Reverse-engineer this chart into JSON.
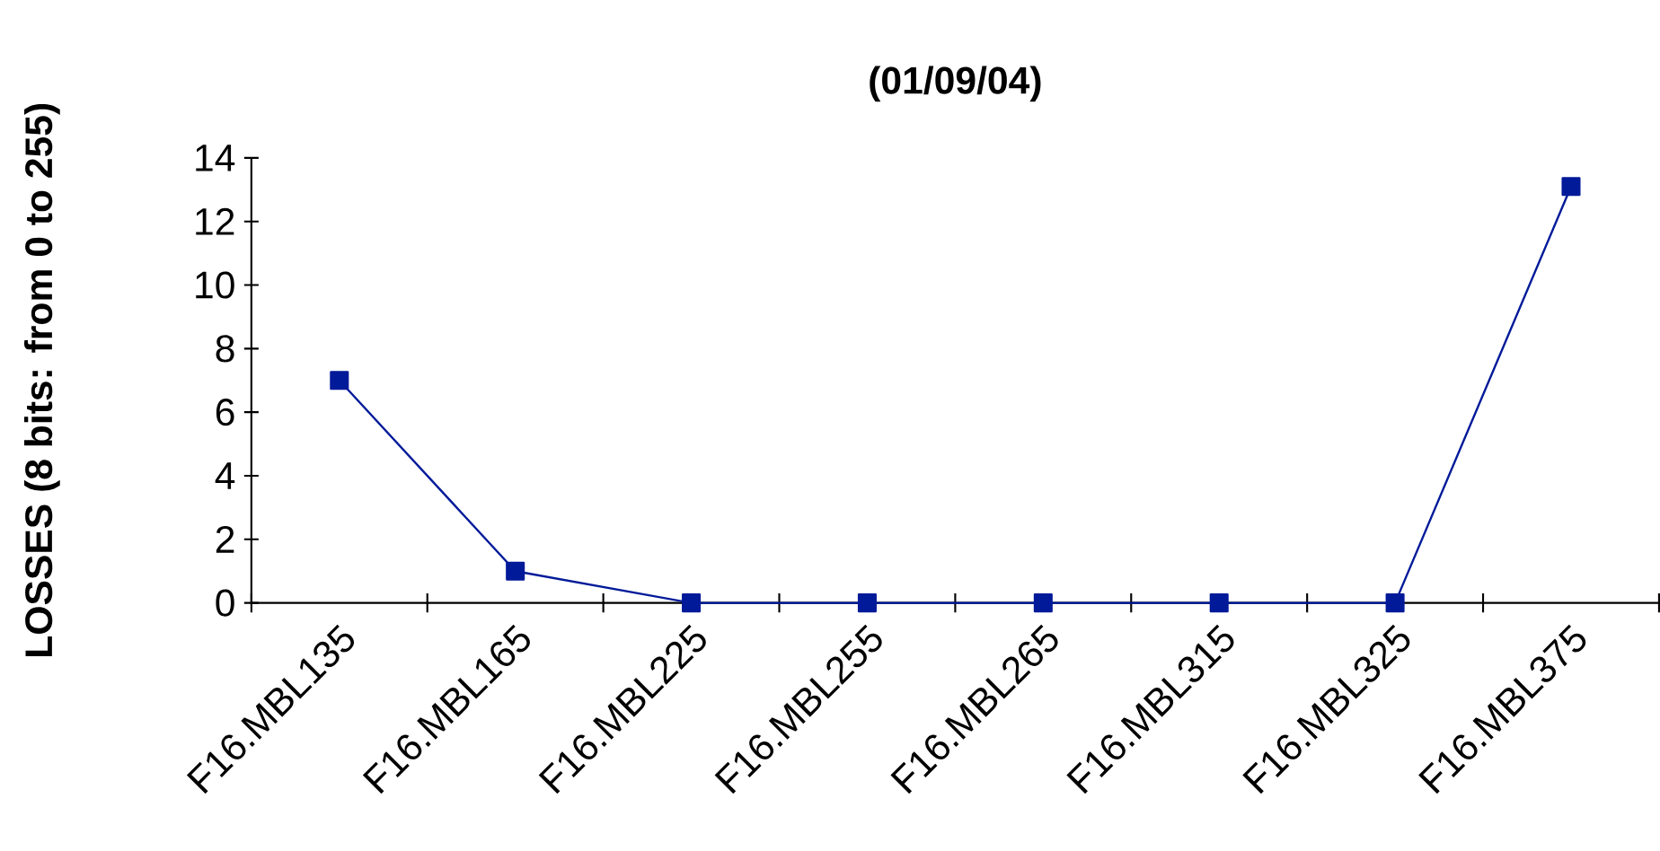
{
  "chart_data": {
    "type": "line",
    "title": "(01/09/04)",
    "ylabel": "LOSSES (8 bits: from 0 to 255)",
    "categories": [
      "F16.MBL135",
      "F16.MBL165",
      "F16.MBL225",
      "F16.MBL255",
      "F16.MBL265",
      "F16.MBL315",
      "F16.MBL325",
      "F16.MBL375"
    ],
    "series": [
      {
        "color": "#001a99",
        "values": [
          7,
          1,
          0,
          0,
          0,
          0,
          0,
          13.1
        ]
      }
    ],
    "ylim": [
      0,
      14
    ],
    "yticks": [
      0,
      2,
      4,
      6,
      8,
      10,
      12,
      14
    ],
    "marker": "square",
    "line_style": "solid"
  }
}
